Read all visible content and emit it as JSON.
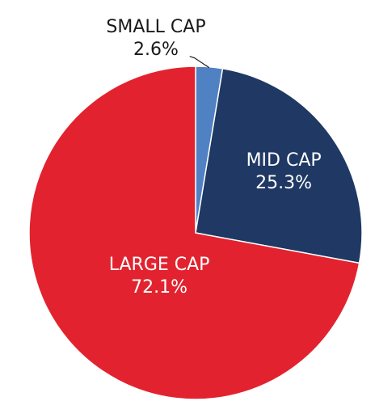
{
  "chart_data": {
    "type": "pie",
    "title": "",
    "start_angle_deg": 0,
    "direction": "clockwise",
    "slices": [
      {
        "label": "SMALL CAP",
        "value": 2.6,
        "value_label": "2.6%",
        "color": "#4f81c3",
        "label_color": "#1a1a1a",
        "label_placement": "outside-with-leader"
      },
      {
        "label": "MID CAP",
        "value": 25.3,
        "value_label": "25.3%",
        "color": "#1f3864",
        "label_color": "#ffffff",
        "label_placement": "inside"
      },
      {
        "label": "LARGE CAP",
        "value": 72.1,
        "value_label": "72.1%",
        "color": "#e2232f",
        "label_color": "#ffffff",
        "label_placement": "inside"
      }
    ],
    "legend": "none",
    "slice_border_color": "#ffffff"
  }
}
